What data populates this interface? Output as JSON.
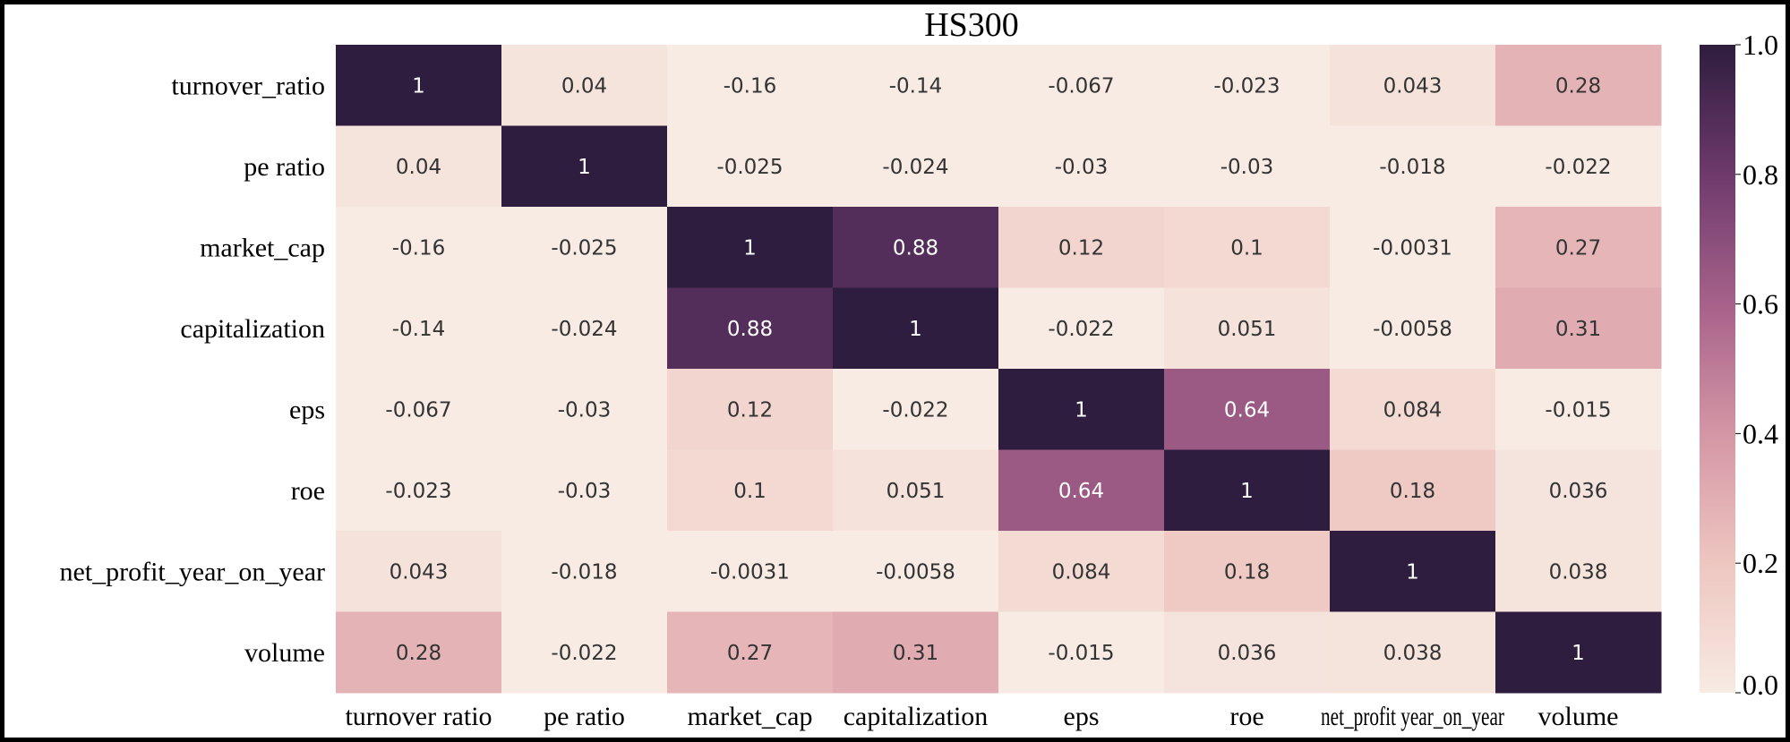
{
  "chart_data": {
    "type": "heatmap",
    "title": "HS300",
    "row_labels": [
      "turnover_ratio",
      "pe ratio",
      "market_cap",
      "capitalization",
      "eps",
      "roe",
      "net_profit_year_on_year",
      "volume"
    ],
    "col_labels": [
      "turnover ratio",
      "pe ratio",
      "market_cap",
      "capitalization",
      "eps",
      "roe",
      "net_profit year_on_year",
      "volume"
    ],
    "values": [
      [
        1,
        0.04,
        -0.16,
        -0.14,
        -0.067,
        -0.023,
        0.043,
        0.28
      ],
      [
        0.04,
        1,
        -0.025,
        -0.024,
        -0.03,
        -0.03,
        -0.018,
        -0.022
      ],
      [
        -0.16,
        -0.025,
        1,
        0.88,
        0.12,
        0.1,
        -0.0031,
        0.27
      ],
      [
        -0.14,
        -0.024,
        0.88,
        1,
        -0.022,
        0.051,
        -0.0058,
        0.31
      ],
      [
        -0.067,
        -0.03,
        0.12,
        -0.022,
        1,
        0.64,
        0.084,
        -0.015
      ],
      [
        -0.023,
        -0.03,
        0.1,
        0.051,
        0.64,
        1,
        0.18,
        0.036
      ],
      [
        0.043,
        -0.018,
        -0.0031,
        -0.0058,
        0.084,
        0.18,
        1,
        0.038
      ],
      [
        0.28,
        -0.022,
        0.27,
        0.31,
        -0.015,
        0.036,
        0.038,
        1
      ]
    ],
    "cell_text": [
      [
        "1",
        "0.04",
        "-0.16",
        "-0.14",
        "-0.067",
        "-0.023",
        "0.043",
        "0.28"
      ],
      [
        "0.04",
        "1",
        "-0.025",
        "-0.024",
        "-0.03",
        "-0.03",
        "-0.018",
        "-0.022"
      ],
      [
        "-0.16",
        "-0.025",
        "1",
        "0.88",
        "0.12",
        "0.1",
        "-0.0031",
        "0.27"
      ],
      [
        "-0.14",
        "-0.024",
        "0.88",
        "1",
        "-0.022",
        "0.051",
        "-0.0058",
        "0.31"
      ],
      [
        "-0.067",
        "-0.03",
        "0.12",
        "-0.022",
        "1",
        "0.64",
        "0.084",
        "-0.015"
      ],
      [
        "-0.023",
        "-0.03",
        "0.1",
        "0.051",
        "0.64",
        "1",
        "0.18",
        "0.036"
      ],
      [
        "0.043",
        "-0.018",
        "-0.0031",
        "-0.0058",
        "0.084",
        "0.18",
        "1",
        "0.038"
      ],
      [
        "0.28",
        "-0.022",
        "0.27",
        "0.31",
        "-0.015",
        "0.036",
        "0.038",
        "1"
      ]
    ],
    "colorbar": {
      "range": [
        0.0,
        1.0
      ],
      "ticks": [
        0.0,
        0.2,
        0.4,
        0.6,
        0.8,
        1.0
      ],
      "tick_labels": [
        "0.0",
        "0.2",
        "0.4",
        "0.6",
        "0.8",
        "1.0"
      ],
      "colormap": [
        "#f7ebe3",
        "#eec6c0",
        "#d496a5",
        "#a6628a",
        "#6e3a6c",
        "#2e1d3e"
      ]
    },
    "xlabel": "",
    "ylabel": ""
  }
}
